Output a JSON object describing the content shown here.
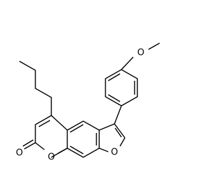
{
  "atoms": [
    "O",
    "O",
    "O",
    "O"
  ]
}
